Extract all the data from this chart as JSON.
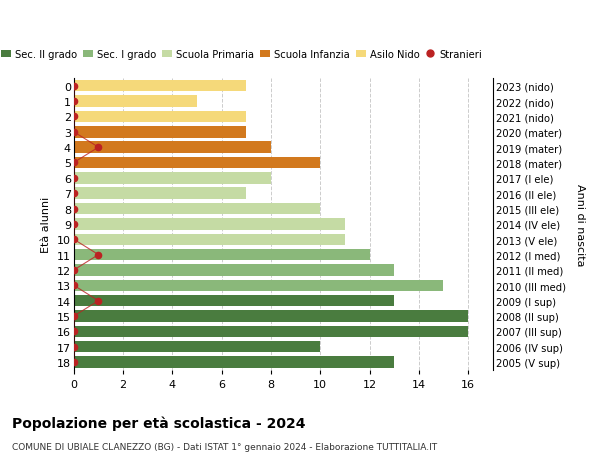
{
  "ages": [
    18,
    17,
    16,
    15,
    14,
    13,
    12,
    11,
    10,
    9,
    8,
    7,
    6,
    5,
    4,
    3,
    2,
    1,
    0
  ],
  "years": [
    "2005 (V sup)",
    "2006 (IV sup)",
    "2007 (III sup)",
    "2008 (II sup)",
    "2009 (I sup)",
    "2010 (III med)",
    "2011 (II med)",
    "2012 (I med)",
    "2013 (V ele)",
    "2014 (IV ele)",
    "2015 (III ele)",
    "2016 (II ele)",
    "2017 (I ele)",
    "2018 (mater)",
    "2019 (mater)",
    "2020 (mater)",
    "2021 (nido)",
    "2022 (nido)",
    "2023 (nido)"
  ],
  "values": [
    13,
    10,
    16,
    16,
    13,
    15,
    13,
    12,
    11,
    11,
    10,
    7,
    8,
    10,
    8,
    7,
    7,
    5,
    7
  ],
  "stranieri_vals": [
    0,
    0,
    0,
    0,
    1,
    0,
    0,
    1,
    0,
    0,
    0,
    0,
    0,
    0,
    1,
    0,
    0,
    0,
    0
  ],
  "bar_colors": [
    "#4a7c3f",
    "#4a7c3f",
    "#4a7c3f",
    "#4a7c3f",
    "#4a7c3f",
    "#8ab87a",
    "#8ab87a",
    "#8ab87a",
    "#c5dba4",
    "#c5dba4",
    "#c5dba4",
    "#c5dba4",
    "#c5dba4",
    "#d2791e",
    "#d2791e",
    "#d2791e",
    "#f5d97a",
    "#f5d97a",
    "#f5d97a"
  ],
  "legend_labels": [
    "Sec. II grado",
    "Sec. I grado",
    "Scuola Primaria",
    "Scuola Infanzia",
    "Asilo Nido",
    "Stranieri"
  ],
  "legend_colors": [
    "#4a7c3f",
    "#8ab87a",
    "#c5dba4",
    "#d2791e",
    "#f5d97a",
    "#bb2222"
  ],
  "title": "Popolazione per età scolastica - 2024",
  "subtitle": "COMUNE DI UBIALE CLANEZZO (BG) - Dati ISTAT 1° gennaio 2024 - Elaborazione TUTTITALIA.IT",
  "ylabel_left": "Età alunni",
  "ylabel_right": "Anni di nascita",
  "xlim": [
    0,
    17
  ],
  "background_color": "#ffffff",
  "grid_color": "#cccccc"
}
